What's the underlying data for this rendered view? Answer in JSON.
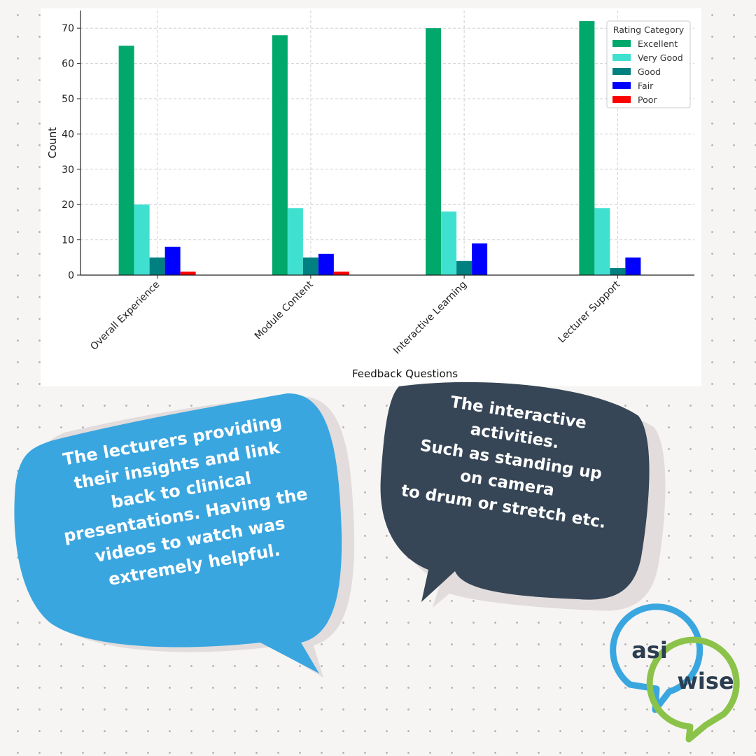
{
  "chart_data": {
    "type": "bar",
    "xlabel": "Feedback Questions",
    "ylabel": "Count",
    "ylim": [
      0,
      75
    ],
    "yticks": [
      0,
      10,
      20,
      30,
      40,
      50,
      60,
      70
    ],
    "grid": true,
    "legend": {
      "title": "Rating Category",
      "placement": "top-right"
    },
    "categories": [
      "Overall Experience",
      "Module Content",
      "Interactive Learning",
      "Lecturer Support"
    ],
    "series": [
      {
        "name": "Excellent",
        "color": "#00a86b",
        "values": [
          65,
          68,
          70,
          72
        ]
      },
      {
        "name": "Very Good",
        "color": "#40e0d0",
        "values": [
          20,
          19,
          18,
          19
        ]
      },
      {
        "name": "Good",
        "color": "#008080",
        "values": [
          5,
          5,
          4,
          2
        ]
      },
      {
        "name": "Fair",
        "color": "#0000ff",
        "values": [
          8,
          6,
          9,
          5
        ]
      },
      {
        "name": "Poor",
        "color": "#ff0000",
        "values": [
          1,
          1,
          0,
          0
        ]
      }
    ]
  },
  "quotes": {
    "left": "The lecturers providing\ntheir insights and link\nback to clinical\npresentations. Having the\nvideos to watch was\nextremely helpful.",
    "right": "The interactive\nactivities.\nSuch as standing up\non camera\nto drum or stretch etc."
  },
  "colors": {
    "bubble_left": "#3aa6e0",
    "bubble_right": "#374656",
    "bubble_shadow": "#e2dcdc",
    "logo_blue": "#3aa6e0",
    "logo_green": "#8bc34a"
  },
  "logo": {
    "word_top": "asi",
    "word_bottom": "wise"
  }
}
